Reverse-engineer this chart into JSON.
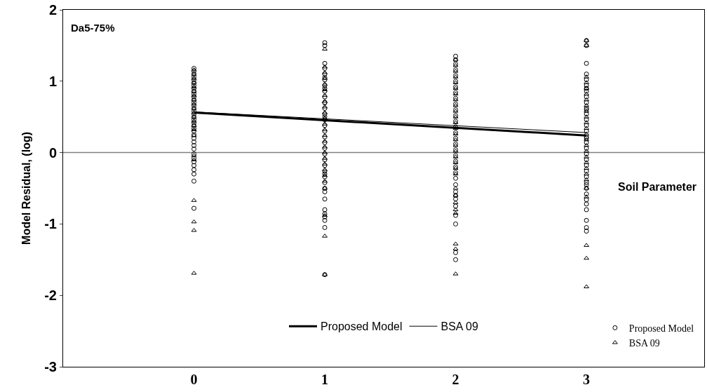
{
  "chart_data": {
    "type": "scatter",
    "xlabel": "Soil Parameter",
    "ylabel": "Model Residual, (log)",
    "annotations": [
      "Da5-75%"
    ],
    "xlim": [
      -1,
      3.9
    ],
    "xticks": [
      0,
      1,
      2,
      3
    ],
    "ylim": [
      -3,
      2
    ],
    "yticks": [
      -3,
      -2,
      -1,
      0,
      1,
      2
    ],
    "grid": false,
    "legend": "bottom",
    "ref_lines": [
      {
        "axis": "y",
        "value": 0,
        "color": "#808080"
      }
    ],
    "series": [
      {
        "name": "Proposed Model",
        "marker": "circle",
        "color": "#000000",
        "x": [
          0,
          0,
          0,
          0,
          0,
          0,
          0,
          0,
          0,
          0,
          0,
          0,
          0,
          0,
          0,
          0,
          0,
          0,
          0,
          0,
          0,
          0,
          0,
          0,
          0,
          0,
          0,
          0,
          0,
          0,
          0,
          0,
          0,
          0,
          0,
          0,
          1,
          1,
          1,
          1,
          1,
          1,
          1,
          1,
          1,
          1,
          1,
          1,
          1,
          1,
          1,
          1,
          1,
          1,
          1,
          1,
          1,
          1,
          1,
          1,
          1,
          1,
          1,
          1,
          1,
          1,
          1,
          1,
          1,
          1,
          1,
          1,
          1,
          1,
          2,
          2,
          2,
          2,
          2,
          2,
          2,
          2,
          2,
          2,
          2,
          2,
          2,
          2,
          2,
          2,
          2,
          2,
          2,
          2,
          2,
          2,
          2,
          2,
          2,
          2,
          2,
          2,
          2,
          2,
          2,
          2,
          3,
          3,
          3,
          3,
          3,
          3,
          3,
          3,
          3,
          3,
          3,
          3,
          3,
          3,
          3,
          3,
          3,
          3,
          3,
          3,
          3,
          3,
          3,
          3,
          3,
          3,
          3,
          3,
          3,
          3,
          3,
          3,
          3,
          3,
          3
        ],
        "values": [
          1.18,
          1.14,
          1.1,
          1.06,
          1.02,
          0.98,
          0.94,
          0.9,
          0.86,
          0.82,
          0.78,
          0.74,
          0.7,
          0.66,
          0.62,
          0.58,
          0.54,
          0.5,
          0.46,
          0.42,
          0.38,
          0.34,
          0.3,
          0.25,
          0.2,
          0.15,
          0.1,
          0.05,
          -0.02,
          -0.08,
          -0.13,
          -0.18,
          -0.24,
          -0.3,
          -0.4,
          -0.78,
          1.54,
          1.5,
          1.25,
          1.18,
          1.1,
          1.02,
          0.94,
          0.86,
          0.78,
          0.7,
          0.62,
          0.54,
          0.46,
          0.38,
          0.3,
          0.22,
          0.14,
          0.06,
          -0.02,
          -0.1,
          -0.18,
          -0.26,
          -0.34,
          -0.42,
          -0.5,
          -0.55,
          -0.65,
          -0.8,
          -0.86,
          -0.9,
          -0.95,
          -1.05,
          -1.71,
          -0.3,
          0.9,
          1.05,
          0.7,
          0.5,
          1.35,
          1.3,
          1.24,
          1.16,
          1.08,
          1.0,
          0.92,
          0.84,
          0.76,
          0.68,
          0.6,
          0.52,
          0.44,
          0.36,
          0.28,
          0.2,
          0.12,
          0.04,
          -0.04,
          -0.12,
          -0.2,
          -0.28,
          -0.36,
          -0.45,
          -0.55,
          -0.65,
          -0.75,
          -0.88,
          -1.0,
          -1.4,
          -1.5,
          -0.6,
          1.57,
          1.5,
          1.25,
          1.1,
          1.02,
          0.94,
          0.86,
          0.78,
          0.7,
          0.62,
          0.54,
          0.46,
          0.38,
          0.3,
          0.22,
          0.14,
          0.06,
          -0.02,
          -0.1,
          -0.18,
          -0.26,
          -0.34,
          -0.42,
          -0.5,
          -0.58,
          -0.66,
          -0.72,
          -0.8,
          -0.95,
          -1.05,
          -1.1,
          -0.45,
          0.2,
          0.6,
          0.9
        ]
      },
      {
        "name": "BSA 09",
        "marker": "triangle",
        "color": "#000000",
        "x": [
          0,
          0,
          0,
          0,
          0,
          0,
          0,
          0,
          0,
          0,
          0,
          0,
          0,
          0,
          0,
          0,
          0,
          0,
          0,
          0,
          0,
          0,
          1,
          1,
          1,
          1,
          1,
          1,
          1,
          1,
          1,
          1,
          1,
          1,
          1,
          1,
          1,
          1,
          1,
          1,
          1,
          1,
          1,
          1,
          1,
          1,
          1,
          1,
          2,
          2,
          2,
          2,
          2,
          2,
          2,
          2,
          2,
          2,
          2,
          2,
          2,
          2,
          2,
          2,
          2,
          2,
          2,
          2,
          2,
          2,
          2,
          2,
          2,
          2,
          2,
          2,
          2,
          3,
          3,
          3,
          3,
          3,
          3,
          3,
          3,
          3,
          3,
          3,
          3,
          3,
          3,
          3,
          3,
          3,
          3,
          3,
          3,
          3,
          3,
          3,
          3,
          3,
          3
        ],
        "values": [
          1.16,
          1.1,
          1.04,
          0.98,
          0.92,
          0.86,
          0.8,
          0.74,
          0.68,
          0.62,
          0.56,
          0.5,
          0.44,
          0.38,
          0.32,
          0.24,
          -0.04,
          -0.1,
          -0.67,
          -0.97,
          -1.09,
          -1.69,
          1.45,
          1.2,
          1.12,
          1.04,
          0.96,
          0.88,
          0.8,
          0.72,
          0.64,
          0.56,
          0.48,
          0.4,
          0.32,
          0.24,
          0.16,
          0.08,
          0.0,
          -0.08,
          -0.16,
          -0.24,
          -0.32,
          -0.4,
          -0.5,
          -1.17,
          -1.71,
          -0.88,
          1.3,
          1.22,
          1.14,
          1.06,
          0.98,
          0.9,
          0.82,
          0.74,
          0.66,
          0.58,
          0.5,
          0.42,
          0.34,
          0.26,
          0.18,
          0.1,
          0.02,
          -0.06,
          -0.14,
          -0.22,
          -0.3,
          -0.5,
          -0.6,
          -0.7,
          -0.8,
          -0.85,
          -1.28,
          -1.35,
          -1.7,
          1.57,
          1.5,
          1.06,
          0.98,
          0.9,
          0.82,
          0.74,
          0.66,
          0.58,
          0.5,
          0.42,
          0.34,
          0.26,
          0.18,
          0.1,
          0.02,
          -0.06,
          -0.14,
          -0.22,
          -0.3,
          -0.38,
          -0.5,
          -0.62,
          -1.3,
          -1.48,
          -1.88
        ]
      },
      {
        "name": "Proposed Model",
        "type": "line",
        "color": "#000000",
        "line_style": "solid",
        "marker": "none",
        "x": [
          0,
          3
        ],
        "values": [
          0.56,
          0.24
        ]
      },
      {
        "name": "BSA 09",
        "type": "line",
        "color": "#000000",
        "line_style": "solid",
        "marker": "none",
        "x": [
          0,
          3
        ],
        "values": [
          0.57,
          0.28
        ]
      }
    ]
  }
}
